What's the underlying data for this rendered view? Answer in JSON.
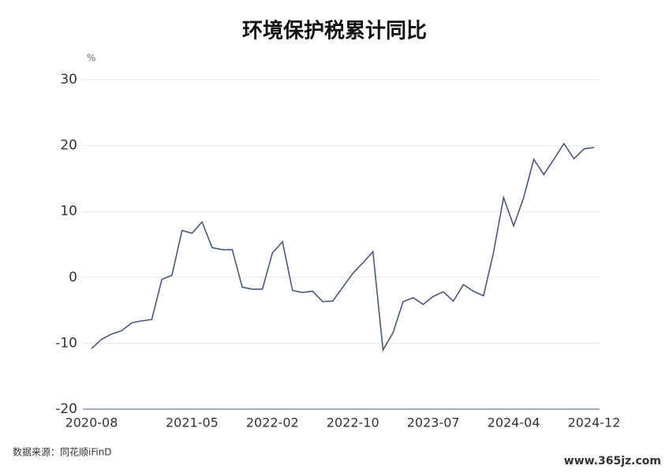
{
  "chart_data": {
    "type": "line",
    "title": "环境保护税累计同比",
    "y_unit": "%",
    "categories": [
      "2020-08",
      null,
      null,
      null,
      null,
      null,
      null,
      null,
      null,
      null,
      "2021-05",
      null,
      null,
      null,
      null,
      null,
      null,
      null,
      "2022-02",
      null,
      null,
      null,
      null,
      null,
      null,
      null,
      "2022-10",
      null,
      null,
      null,
      null,
      null,
      null,
      null,
      "2023-07",
      null,
      null,
      null,
      null,
      null,
      null,
      null,
      "2024-04",
      null,
      null,
      null,
      null,
      null,
      null,
      null,
      "2024-12"
    ],
    "series": [
      {
        "name": "环境保护税累计同比",
        "color": "#4a5878",
        "values": [
          -10.8,
          -9.4,
          -8.6,
          -8.1,
          -6.9,
          -6.6,
          -6.4,
          -0.3,
          0.3,
          7.1,
          6.7,
          8.4,
          4.5,
          4.2,
          4.2,
          -1.5,
          -1.8,
          -1.8,
          3.7,
          5.4,
          -2.0,
          -2.3,
          -2.1,
          -3.7,
          -3.6,
          -1.5,
          0.6,
          2.2,
          3.9,
          -11.0,
          -8.4,
          -3.7,
          -3.1,
          -4.1,
          -2.9,
          -2.2,
          -3.6,
          -1.1,
          -2.1,
          -2.8,
          3.8,
          12.1,
          7.8,
          12.1,
          17.9,
          15.6,
          17.9,
          20.3,
          18.0,
          19.5,
          19.7
        ]
      }
    ],
    "ylim": [
      -20,
      30
    ],
    "yticks": [
      -20,
      -10,
      0,
      10,
      20,
      30
    ],
    "grid": true,
    "source": "数据来源：同花顺iFinD",
    "watermark": "www.365jz.com"
  }
}
